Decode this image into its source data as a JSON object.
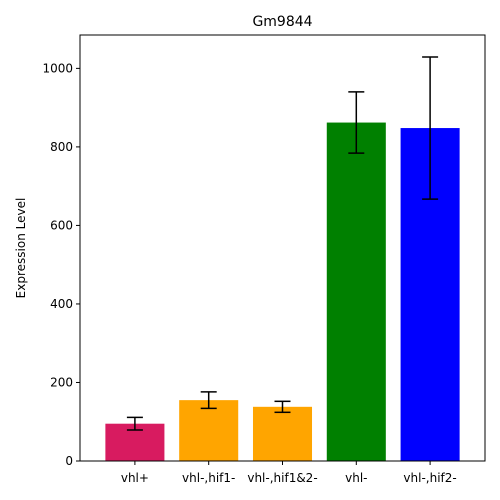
{
  "chart_data": {
    "type": "bar",
    "title": "Gm9844",
    "xlabel": "",
    "ylabel": "Expression Level",
    "categories": [
      "vhl+",
      "vhl-,hif1-",
      "vhl-,hif1&2-",
      "vhl-",
      "vhl-,hif2-"
    ],
    "values": [
      95,
      155,
      138,
      862,
      848
    ],
    "errors": [
      16,
      21,
      14,
      78,
      181
    ],
    "colors": [
      "#d81b60",
      "#ffa500",
      "#ffa500",
      "#008000",
      "#0000ff"
    ],
    "ylim": [
      0,
      1085
    ],
    "yticks": [
      0,
      200,
      400,
      600,
      800,
      1000
    ],
    "grid": false,
    "legend": "none"
  }
}
